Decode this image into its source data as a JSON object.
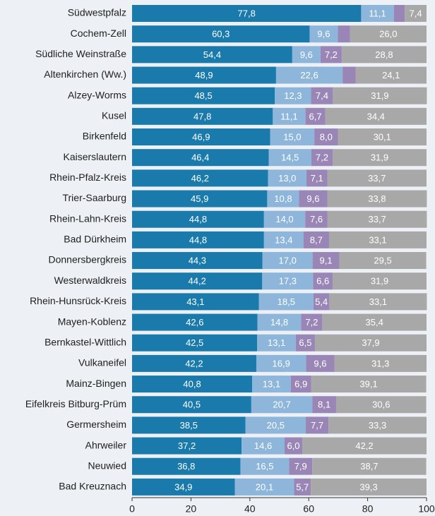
{
  "chart_data": {
    "type": "bar",
    "orientation": "horizontal",
    "stacked": true,
    "categories": [
      "Südwestpfalz",
      "Cochem-Zell",
      "Südliche Weinstraße",
      "Altenkirchen (Ww.)",
      "Alzey-Worms",
      "Kusel",
      "Birkenfeld",
      "Kaiserslautern",
      "Rhein-Pfalz-Kreis",
      "Trier-Saarburg",
      "Rhein-Lahn-Kreis",
      "Bad Dürkheim",
      "Donnersbergkreis",
      "Westerwaldkreis",
      "Rhein-Hunsrück-Kreis",
      "Mayen-Koblenz",
      "Bernkastel-Wittlich",
      "Vulkaneifel",
      "Mainz-Bingen",
      "Eifelkreis Bitburg-Prüm",
      "Germersheim",
      "Ahrweiler",
      "Neuwied",
      "Bad Kreuznach"
    ],
    "series": [
      {
        "color": "#1a7aab",
        "values": [
          77.8,
          60.3,
          54.4,
          48.9,
          48.5,
          47.8,
          46.9,
          46.4,
          46.2,
          45.9,
          44.8,
          44.8,
          44.3,
          44.2,
          43.1,
          42.6,
          42.5,
          42.2,
          40.8,
          40.5,
          38.5,
          37.2,
          36.8,
          34.9
        ],
        "value_labels": [
          "77,8",
          "60,3",
          "54,4",
          "48,9",
          "48,5",
          "47,8",
          "46,9",
          "46,4",
          "46,2",
          "45,9",
          "44,8",
          "44,8",
          "44,3",
          "44,2",
          "43,1",
          "42,6",
          "42,5",
          "42,2",
          "40,8",
          "40,5",
          "38,5",
          "37,2",
          "36,8",
          "34,9"
        ]
      },
      {
        "color": "#8db6da",
        "values": [
          11.1,
          9.6,
          9.6,
          22.6,
          12.3,
          11.1,
          15.0,
          14.5,
          13.0,
          10.8,
          14.0,
          13.4,
          17.0,
          17.3,
          18.5,
          14.8,
          13.1,
          16.9,
          13.1,
          20.7,
          20.5,
          14.6,
          16.5,
          20.1
        ],
        "value_labels": [
          "11,1",
          "9,6",
          "9,6",
          "22,6",
          "12,3",
          "11,1",
          "15,0",
          "14,5",
          "13,0",
          "10,8",
          "14,0",
          "13,4",
          "17,0",
          "17,3",
          "18,5",
          "14,8",
          "13,1",
          "16,9",
          "13,1",
          "20,7",
          "20,5",
          "14,6",
          "16,5",
          "20,1"
        ]
      },
      {
        "color": "#9a86b6",
        "values": [
          3.7,
          4.1,
          7.2,
          4.4,
          7.4,
          6.7,
          8.0,
          7.2,
          7.1,
          9.6,
          7.6,
          8.7,
          9.1,
          6.6,
          5.4,
          7.2,
          6.5,
          9.6,
          6.9,
          8.1,
          7.7,
          6.0,
          7.9,
          5.7
        ],
        "value_labels": [
          null,
          null,
          "7,2",
          null,
          "7,4",
          "6,7",
          "8,0",
          "7,2",
          "7,1",
          "9,6",
          "7,6",
          "8,7",
          "9,1",
          "6,6",
          "5,4",
          "7,2",
          "6,5",
          "9,6",
          "6,9",
          "8,1",
          "7,7",
          "6,0",
          "7,9",
          "5,7"
        ]
      },
      {
        "color": "#a8a8a8",
        "values": [
          7.4,
          26.0,
          28.8,
          24.1,
          31.9,
          34.4,
          30.1,
          31.9,
          33.7,
          33.8,
          33.7,
          33.1,
          29.5,
          31.9,
          33.1,
          35.4,
          37.9,
          31.3,
          39.1,
          30.6,
          33.3,
          42.2,
          38.7,
          39.3
        ],
        "value_labels": [
          "7,4",
          "26,0",
          "28,8",
          "24,1",
          "31,9",
          "34,4",
          "30,1",
          "31,9",
          "33,7",
          "33,8",
          "33,7",
          "33,1",
          "29,5",
          "31,9",
          "33,1",
          "35,4",
          "37,9",
          "31,3",
          "39,1",
          "30,6",
          "33,3",
          "42,2",
          "38,7",
          "39,3"
        ]
      }
    ],
    "xlim": [
      0,
      100
    ],
    "xticks": [
      0,
      20,
      40,
      60,
      80,
      100
    ]
  }
}
